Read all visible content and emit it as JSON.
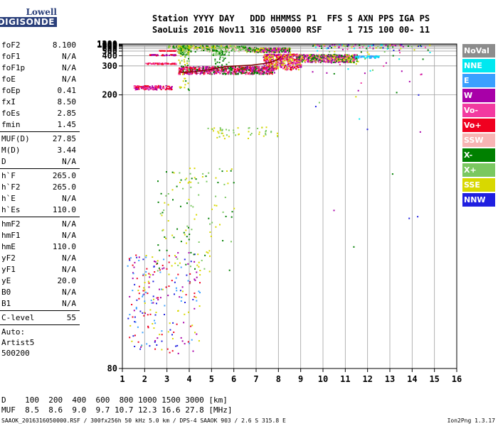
{
  "logo": {
    "brand_top": "Lowell",
    "brand_bottom": "DIGISONDE"
  },
  "header": {
    "line1": "Station YYYY DAY   DDD HHMMSS P1  FFS S AXN PPS IGA PS",
    "line2": "SaoLuis 2016 Nov11 316 050000 RSF     1 715 100 00- 11"
  },
  "params": {
    "group1": [
      {
        "k": "foF2",
        "v": "8.100"
      },
      {
        "k": "foF1",
        "v": "N/A"
      },
      {
        "k": "foF1p",
        "v": "N/A"
      },
      {
        "k": "foE",
        "v": "N/A"
      },
      {
        "k": "foEp",
        "v": "0.41"
      },
      {
        "k": "fxI",
        "v": "8.50"
      },
      {
        "k": "foEs",
        "v": "2.85"
      },
      {
        "k": "fmin",
        "v": "1.45"
      }
    ],
    "group2": [
      {
        "k": "MUF(D)",
        "v": "27.85"
      },
      {
        "k": "M(D)",
        "v": "3.44"
      },
      {
        "k": "D",
        "v": "N/A"
      }
    ],
    "group3": [
      {
        "k": "h`F",
        "v": "265.0"
      },
      {
        "k": "h`F2",
        "v": "265.0"
      },
      {
        "k": "h`E",
        "v": "N/A"
      },
      {
        "k": "h`Es",
        "v": "110.0"
      }
    ],
    "group4": [
      {
        "k": "hmF2",
        "v": "N/A"
      },
      {
        "k": "hmF1",
        "v": "N/A"
      },
      {
        "k": "hmE",
        "v": "110.0"
      },
      {
        "k": "yF2",
        "v": "N/A"
      },
      {
        "k": "yF1",
        "v": "N/A"
      },
      {
        "k": "yE",
        "v": "20.0"
      },
      {
        "k": "B0",
        "v": "N/A"
      },
      {
        "k": "B1",
        "v": "N/A"
      }
    ],
    "group5": [
      {
        "k": "C-level",
        "v": "55"
      }
    ],
    "auto_lines": [
      "Auto:",
      "Artist5",
      "500200"
    ]
  },
  "legend": [
    {
      "label": "NoVal",
      "color": "#8c8c8c"
    },
    {
      "label": "NNE",
      "color": "#00e8f0"
    },
    {
      "label": "E",
      "color": "#3aa0ff"
    },
    {
      "label": "W",
      "color": "#a800a8"
    },
    {
      "label": "Vo-",
      "color": "#f23aa0"
    },
    {
      "label": "Vo+",
      "color": "#f00020"
    },
    {
      "label": "SSW",
      "color": "#f8b4b4"
    },
    {
      "label": "X-",
      "color": "#008000"
    },
    {
      "label": "X+",
      "color": "#7ac860"
    },
    {
      "label": "SSE",
      "color": "#d8d800"
    },
    {
      "label": "NNW",
      "color": "#2020e0"
    }
  ],
  "chart_data": {
    "type": "scatter",
    "xlim": [
      1,
      16
    ],
    "ylim": [
      80,
      1280
    ],
    "x_ticks": [
      1,
      2,
      3,
      4,
      5,
      6,
      7,
      8,
      9,
      10,
      11,
      12,
      13,
      14,
      15,
      16
    ],
    "y_ticks": [
      80,
      200,
      300,
      400,
      500,
      600,
      700,
      800,
      900,
      1000,
      1100,
      1280
    ],
    "grid": true,
    "y_axis": "inverse-square",
    "trace": {
      "color": "#800000",
      "x": [
        3.6,
        4.2,
        5.0,
        5.6,
        6.2,
        6.8,
        7.3,
        7.7,
        8.0,
        8.1
      ],
      "y": [
        265,
        268,
        280,
        296,
        300,
        305,
        315,
        330,
        355,
        385
      ]
    },
    "echo_regions": [
      {
        "x": [
          3.5,
          7.8
        ],
        "y": [
          260,
          300
        ],
        "colors": [
          "#f23aa0",
          "#f00020",
          "#008000",
          "#a800a8"
        ],
        "n": 700
      },
      {
        "x": [
          7.3,
          9.0
        ],
        "y": [
          280,
          440
        ],
        "colors": [
          "#f23aa0",
          "#f00020",
          "#a800a8",
          "#d8d800"
        ],
        "n": 450
      },
      {
        "x": [
          8.8,
          11.5
        ],
        "y": [
          330,
          430
        ],
        "colors": [
          "#d8d800",
          "#a800a8",
          "#f23aa0",
          "#008000"
        ],
        "n": 550
      },
      {
        "x": [
          11.4,
          12.5
        ],
        "y": [
          375,
          410
        ],
        "colors": [
          "#00e8f0",
          "#3aa0ff"
        ],
        "n": 70
      },
      {
        "x": [
          1.5,
          3.2
        ],
        "y": [
          212,
          222
        ],
        "colors": [
          "#f00020",
          "#f23aa0",
          "#a800a8"
        ],
        "n": 130
      },
      {
        "x": [
          2.0,
          3.4
        ],
        "y": [
          315,
          325
        ],
        "colors": [
          "#f00020",
          "#f23aa0"
        ],
        "n": 60
      },
      {
        "x": [
          2.2,
          3.4
        ],
        "y": [
          415,
          430
        ],
        "colors": [
          "#f00020",
          "#a800a8"
        ],
        "n": 50
      },
      {
        "x": [
          2.5,
          3.4
        ],
        "y": [
          525,
          535
        ],
        "colors": [
          "#f00020"
        ],
        "n": 35
      },
      {
        "x": [
          1.2,
          4.5
        ],
        "y": [
          82,
          100
        ],
        "colors": [
          "#f00020",
          "#3aa0ff",
          "#2020e0",
          "#a800a8",
          "#d8d800"
        ],
        "n": 220
      },
      {
        "x": [
          2.5,
          6.0
        ],
        "y": [
          95,
          130
        ],
        "colors": [
          "#d8d800",
          "#008000",
          "#7ac860"
        ],
        "n": 120
      },
      {
        "x": [
          4.8,
          8.0
        ],
        "y": [
          148,
          158
        ],
        "colors": [
          "#d8d800",
          "#7ac860"
        ],
        "n": 50
      },
      {
        "x": [
          6.5,
          8.5
        ],
        "y": [
          480,
          660
        ],
        "colors": [
          "#f23aa0",
          "#a800a8",
          "#008000",
          "#d8d800"
        ],
        "n": 260
      },
      {
        "x": [
          3.4,
          7.0
        ],
        "y": [
          500,
          700
        ],
        "colors": [
          "#7ac860",
          "#008000",
          "#f8b4b4"
        ],
        "n": 200
      },
      {
        "x": [
          3.0,
          6.5
        ],
        "y": [
          650,
          950
        ],
        "colors": [
          "#7ac860",
          "#d8d800",
          "#f8b4b4",
          "#008000"
        ],
        "n": 180
      },
      {
        "x": [
          3.5,
          4.0
        ],
        "y": [
          200,
          950
        ],
        "colors": [
          "#7ac860",
          "#008000",
          "#d8d800"
        ],
        "n": 140
      },
      {
        "x": [
          5.0,
          5.8
        ],
        "y": [
          300,
          560
        ],
        "colors": [
          "#7ac860",
          "#008000"
        ],
        "n": 60
      },
      {
        "x": [
          9.5,
          14.8
        ],
        "y": [
          100,
          1280
        ],
        "colors": [
          "#d8d800",
          "#008000",
          "#a800a8",
          "#2020e0",
          "#00e8f0",
          "#f23aa0",
          "#7ac860"
        ],
        "n": 140
      }
    ]
  },
  "distance_table": {
    "row_d": "D    100  200  400  600  800 1000 1500 3000 [km]",
    "row_muf": "MUF  8.5  8.6  9.0  9.7 10.7 12.3 16.6 27.8 [MHz]"
  },
  "footer": {
    "file": "SAAOK_2016316050000.RSF / 300fx256h 50 kHz 5.0 km / DPS-4 SAAOK 903 / 2.6 S 315.8 E",
    "version": "Ion2Png 1.3.17"
  }
}
